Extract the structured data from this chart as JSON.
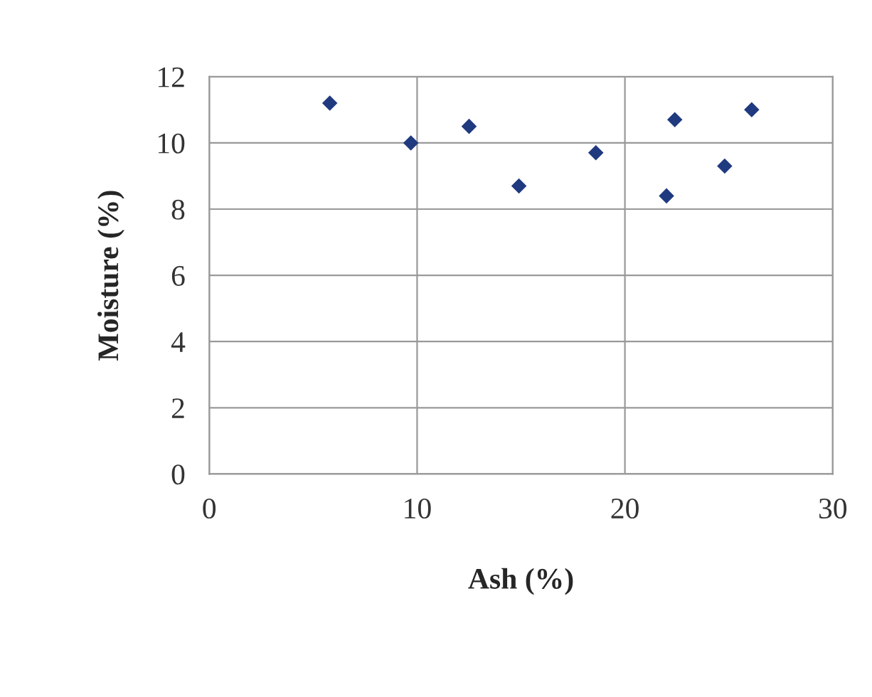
{
  "chart_data": {
    "type": "scatter",
    "xlabel": "Ash (%)",
    "ylabel": "Moisture (%)",
    "x": [
      5.8,
      9.7,
      12.5,
      14.9,
      18.6,
      22.0,
      22.4,
      24.8,
      26.1
    ],
    "series": [
      {
        "color": "#203a80",
        "values": [
          11.2,
          10.0,
          10.5,
          8.7,
          9.7,
          8.4,
          10.7,
          9.3,
          11.0
        ]
      }
    ],
    "xlim": [
      0,
      30
    ],
    "xticks": [
      0,
      10,
      20,
      30
    ],
    "ylim": [
      0,
      12
    ],
    "yticks": [
      0,
      2,
      4,
      6,
      8,
      10,
      12
    ],
    "grid": true,
    "marker": "diamond"
  }
}
